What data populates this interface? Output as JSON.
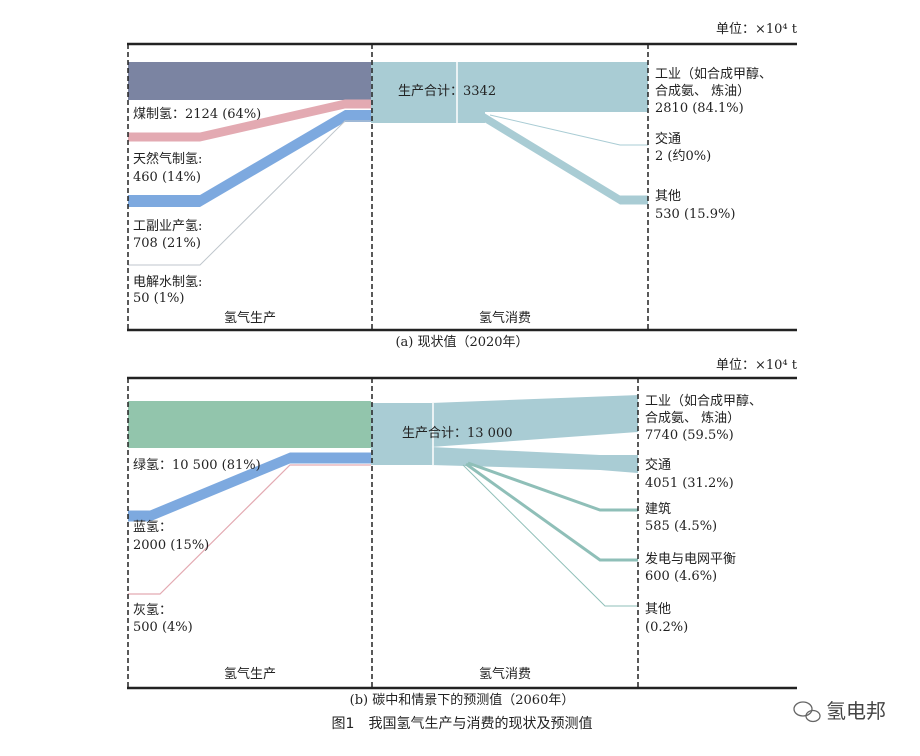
{
  "figure_title": "图1　我国氢气生产与消费的现状及预测值",
  "watermark": "氢电邦",
  "colors": {
    "coal": "#7b84a2",
    "gas": "#e3aab2",
    "byproduct": "#7da9df",
    "electrolysis": "#bfc6cc",
    "consumption": "#a9ccd4",
    "green": "#92c5ac",
    "blue": "#7da9df",
    "grey": "#e3aab2",
    "consumption_green": "#8fbfb8"
  },
  "panel_a": {
    "unit": "单位：×10⁴ t",
    "caption": "(a) 现状值（2020年）",
    "production_header": "氢气生产",
    "consumption_header": "氢气消费",
    "total": "生产合计：3342",
    "sources": [
      {
        "name": "煤制氢：2124 (64%)",
        "value_line": "",
        "value": 2124
      },
      {
        "name": "天然气制氢:",
        "value_line": "460 (14%)",
        "value": 460
      },
      {
        "name": "工副业产氢:",
        "value_line": "708 (21%)",
        "value": 708
      },
      {
        "name": "电解水制氢:",
        "value_line": "50 (1%)",
        "value": 50
      }
    ],
    "uses": [
      {
        "line1": "工业（如合成甲醇、",
        "line2": "合成氨、 炼油）",
        "line3": "2810 (84.1%)",
        "value": 2810
      },
      {
        "line1": "交通",
        "line2": "2 (约0%)",
        "value": 2
      },
      {
        "line1": "其他",
        "line2": "530 (15.9%)",
        "value": 530
      }
    ]
  },
  "panel_b": {
    "unit": "单位：×10⁴ t",
    "caption": "(b) 碳中和情景下的预测值（2060年）",
    "production_header": "氢气生产",
    "consumption_header": "氢气消费",
    "total": "生产合计：13 000",
    "sources": [
      {
        "name": "绿氢：10 500 (81%)",
        "value_line": "",
        "value": 10500
      },
      {
        "name": "蓝氢：",
        "value_line": "2000 (15%)",
        "value": 2000
      },
      {
        "name": "灰氢：",
        "value_line": "500 (4%)",
        "value": 500
      }
    ],
    "uses": [
      {
        "line1": "工业（如合成甲醇、",
        "line2": "合成氨、 炼油）",
        "line3": "7740 (59.5%)",
        "value": 7740
      },
      {
        "line1": "交通",
        "line2": "4051 (31.2%)",
        "value": 4051
      },
      {
        "line1": "建筑",
        "line2": "585 (4.5%)",
        "value": 585
      },
      {
        "line1": "发电与电网平衡",
        "line2": "600 (4.6%)",
        "value": 600
      },
      {
        "line1": "其他",
        "line2": "(0.2%)",
        "value": 26
      }
    ]
  }
}
